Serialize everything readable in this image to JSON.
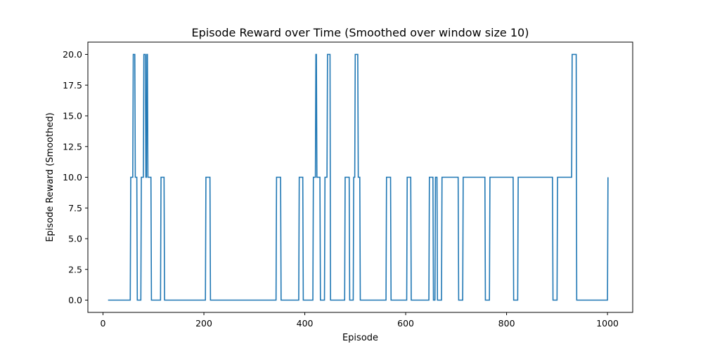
{
  "chart_data": {
    "type": "line",
    "title": "Episode Reward over Time (Smoothed over window size 10)",
    "xlabel": "Episode",
    "ylabel": "Episode Reward (Smoothed)",
    "xlim": [
      -30,
      1050
    ],
    "ylim": [
      -1,
      21
    ],
    "xticks": [
      0,
      200,
      400,
      600,
      800,
      1000
    ],
    "xtick_labels": [
      "0",
      "200",
      "400",
      "600",
      "800",
      "1000"
    ],
    "yticks": [
      0,
      2.5,
      5,
      7.5,
      10,
      12.5,
      15,
      17.5,
      20
    ],
    "ytick_labels": [
      "0.0",
      "2.5",
      "5.0",
      "7.5",
      "10.0",
      "12.5",
      "15.0",
      "17.5",
      "20.0"
    ],
    "grid": false,
    "colors": {
      "line": "#1f77b4",
      "axes": "#000000",
      "background": "#ffffff"
    },
    "series": [
      {
        "x": [
          10,
          54,
          55,
          59,
          60,
          63,
          64,
          67,
          68,
          75,
          76,
          80,
          81,
          84,
          85,
          86,
          87,
          88,
          89,
          90,
          91,
          95,
          96,
          114,
          115,
          121,
          122,
          203,
          204,
          212,
          213,
          343,
          344,
          352,
          353,
          388,
          389,
          396,
          397,
          416,
          417,
          421,
          422,
          423,
          424,
          430,
          431,
          439,
          440,
          444,
          445,
          450,
          451,
          479,
          480,
          488,
          489,
          496,
          497,
          499,
          500,
          505,
          506,
          509,
          510,
          561,
          562,
          570,
          571,
          602,
          603,
          610,
          611,
          646,
          647,
          654,
          655,
          658,
          659,
          662,
          663,
          671,
          672,
          704,
          705,
          713,
          714,
          757,
          758,
          766,
          767,
          813,
          814,
          822,
          823,
          891,
          892,
          900,
          901,
          929,
          930,
          938,
          939,
          1000,
          1001
        ],
        "y": [
          0,
          0,
          10,
          10,
          20,
          20,
          10,
          10,
          0,
          0,
          10,
          10,
          20,
          20,
          10,
          10,
          20,
          20,
          10,
          10,
          10,
          10,
          0,
          0,
          10,
          10,
          0,
          0,
          10,
          10,
          0,
          0,
          10,
          10,
          0,
          0,
          10,
          10,
          0,
          0,
          10,
          10,
          20,
          20,
          10,
          10,
          0,
          0,
          10,
          10,
          20,
          20,
          0,
          0,
          10,
          10,
          0,
          0,
          10,
          10,
          20,
          20,
          10,
          10,
          0,
          0,
          10,
          10,
          0,
          0,
          10,
          10,
          0,
          0,
          10,
          10,
          0,
          0,
          10,
          10,
          0,
          0,
          10,
          10,
          0,
          0,
          10,
          10,
          0,
          0,
          10,
          10,
          0,
          0,
          10,
          10,
          0,
          0,
          10,
          10,
          20,
          20,
          0,
          0,
          10
        ]
      }
    ]
  }
}
